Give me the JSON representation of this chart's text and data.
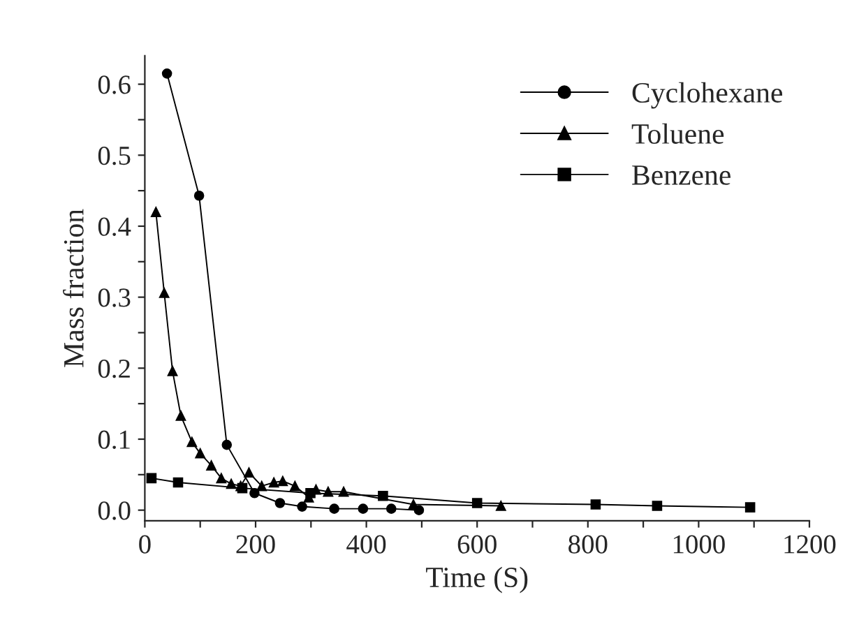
{
  "chart_data": {
    "type": "line",
    "xlabel": "Time (S)",
    "ylabel": "Mass fraction",
    "series": [
      {
        "name": "Cyclohexane",
        "color": "#000000",
        "marker": "circle",
        "x": [
          40,
          98,
          148,
          198,
          244,
          284,
          342,
          394,
          445,
          495
        ],
        "values": [
          0.615,
          0.443,
          0.092,
          0.024,
          0.01,
          0.005,
          0.002,
          0.002,
          0.002,
          0.0
        ]
      },
      {
        "name": "Toluene",
        "color": "#000000",
        "marker": "triangle",
        "x": [
          20,
          35,
          50,
          65,
          85,
          100,
          120,
          138,
          156,
          173,
          188,
          211,
          233,
          249,
          271,
          296,
          309,
          331,
          359,
          485,
          643
        ],
        "values": [
          0.42,
          0.306,
          0.196,
          0.133,
          0.096,
          0.08,
          0.063,
          0.045,
          0.037,
          0.034,
          0.053,
          0.034,
          0.039,
          0.041,
          0.034,
          0.018,
          0.029,
          0.026,
          0.026,
          0.008,
          0.006
        ]
      },
      {
        "name": "Benzene",
        "color": "#000000",
        "marker": "square",
        "x": [
          12,
          60,
          176,
          299,
          430,
          600,
          814,
          925,
          1093
        ],
        "values": [
          0.045,
          0.039,
          0.031,
          0.024,
          0.02,
          0.01,
          0.008,
          0.006,
          0.004
        ]
      }
    ],
    "xlim": [
      0,
      1200
    ],
    "ylim": [
      -0.015,
      0.64
    ],
    "xticks": [
      0,
      {
        "value": 100,
        "label": null
      },
      200,
      {
        "value": 300,
        "label": null
      },
      400,
      {
        "value": 500,
        "label": null
      },
      600,
      {
        "value": 700,
        "label": null
      },
      800,
      {
        "value": 900,
        "label": null
      },
      1000,
      {
        "value": 1100,
        "label": null
      },
      1200
    ],
    "yticks": [
      {
        "value": 0,
        "label": "0.0"
      },
      {
        "value": 0.05,
        "label": null
      },
      0.1,
      {
        "value": 0.15,
        "label": null
      },
      0.2,
      {
        "value": 0.25,
        "label": null
      },
      0.3,
      {
        "value": 0.35,
        "label": null
      },
      0.4,
      {
        "value": 0.45,
        "label": null
      },
      0.5,
      {
        "value": 0.55,
        "label": null
      },
      0.6
    ],
    "grid": false,
    "legend": "top right",
    "line_style": "solid"
  }
}
